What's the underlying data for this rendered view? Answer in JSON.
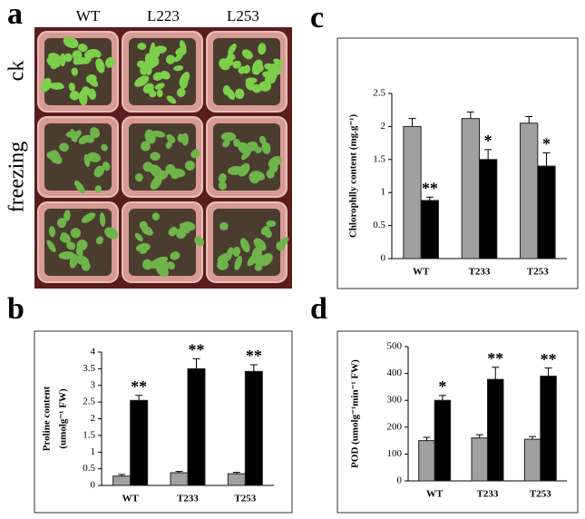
{
  "panel_labels": [
    "a",
    "b",
    "c",
    "d"
  ],
  "photo": {
    "columns": [
      "WT",
      "L223",
      "L253"
    ],
    "rows": [
      "ck",
      "freezing"
    ]
  },
  "chart_data": [
    {
      "type": "bar",
      "ylabel": [
        "Proline content",
        "(umolg⁻¹ FW)"
      ],
      "categories": [
        "WT",
        "T233",
        "T253"
      ],
      "ylim": [
        0,
        4
      ],
      "yticks": [
        0,
        0.5,
        1,
        1.5,
        2,
        2.5,
        3,
        3.5,
        4
      ],
      "series": [
        {
          "color": "#a0a0a0",
          "values": [
            0.28,
            0.38,
            0.35
          ],
          "errors": [
            0.05,
            0.04,
            0.04
          ]
        },
        {
          "color": "#000000",
          "values": [
            2.55,
            3.5,
            3.42
          ],
          "errors": [
            0.15,
            0.3,
            0.2
          ],
          "significance": [
            "**",
            "**",
            "**"
          ]
        }
      ]
    },
    {
      "type": "bar",
      "ylabel": [
        "Chlorophlly content (mg.g⁻¹)"
      ],
      "categories": [
        "WT",
        "T233",
        "T253"
      ],
      "ylim": [
        0,
        2.5
      ],
      "yticks": [
        0,
        0.5,
        1,
        1.5,
        2,
        2.5
      ],
      "series": [
        {
          "color": "#a0a0a0",
          "values": [
            2.0,
            2.12,
            2.05
          ],
          "errors": [
            0.12,
            0.1,
            0.1
          ]
        },
        {
          "color": "#000000",
          "values": [
            0.88,
            1.5,
            1.4
          ],
          "errors": [
            0.05,
            0.15,
            0.2
          ],
          "significance": [
            "**",
            "*",
            "*"
          ]
        }
      ]
    },
    {
      "type": "bar",
      "ylabel": [
        "POD (umolg⁻¹min⁻¹ FW)"
      ],
      "categories": [
        "WT",
        "T233",
        "T253"
      ],
      "ylim": [
        0,
        500
      ],
      "yticks": [
        0,
        100,
        200,
        300,
        400,
        500
      ],
      "series": [
        {
          "color": "#a0a0a0",
          "values": [
            150,
            160,
            155
          ],
          "errors": [
            12,
            12,
            10
          ]
        },
        {
          "color": "#000000",
          "values": [
            300,
            378,
            390
          ],
          "errors": [
            18,
            45,
            30
          ],
          "significance": [
            "*",
            "**",
            "**"
          ]
        }
      ]
    }
  ]
}
